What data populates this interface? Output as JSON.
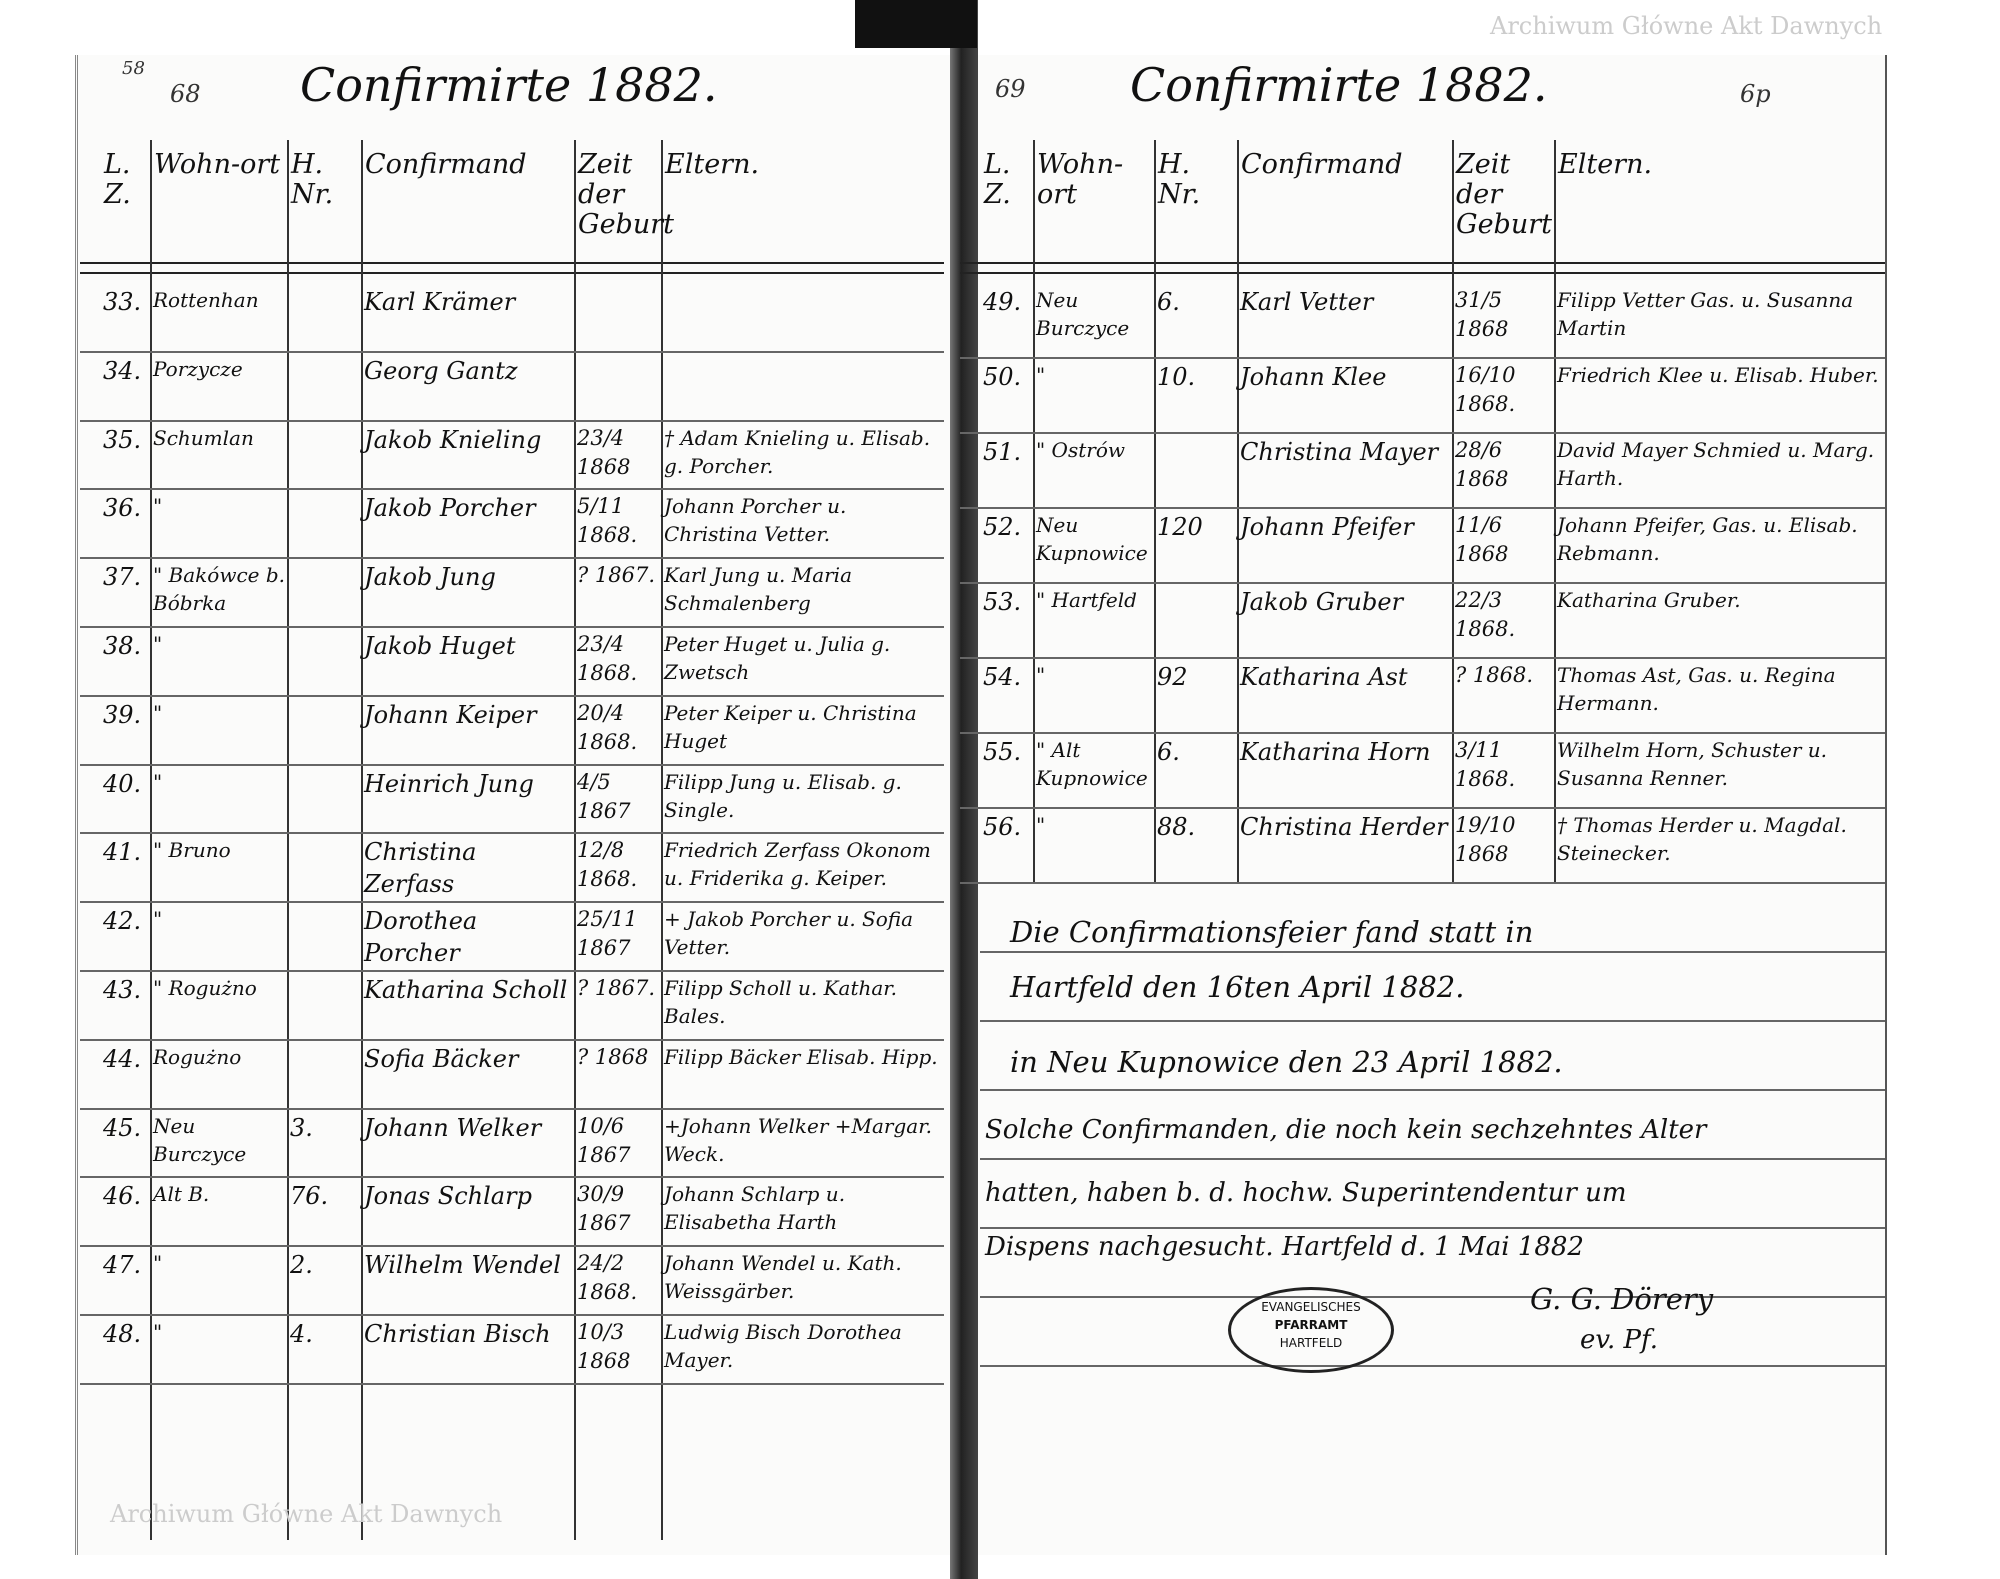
{
  "left_page": {
    "page_number": "68",
    "corner_mark": "58",
    "title": "Confirmirte 1882.",
    "headers": [
      "L. Z.",
      "Wohn-ort",
      "H. Nr.",
      "Confirmand",
      "Zeit der Geburt",
      "Eltern."
    ],
    "rows": [
      {
        "no": "33.",
        "place": "Rottenhan",
        "house": "",
        "name": "Karl Krämer",
        "birth": "",
        "parents": ""
      },
      {
        "no": "34.",
        "place": "Porzycze",
        "house": "",
        "name": "Georg Gantz",
        "birth": "",
        "parents": ""
      },
      {
        "no": "35.",
        "place": "Schumlan",
        "house": "",
        "name": "Jakob Knieling",
        "birth": "23/4 1868",
        "parents": "† Adam Knieling u. Elisab. g. Porcher."
      },
      {
        "no": "36.",
        "place": "\"",
        "house": "",
        "name": "Jakob Porcher",
        "birth": "5/11 1868.",
        "parents": "Johann Porcher u. Christina Vetter."
      },
      {
        "no": "37.",
        "place": "\" Bakówce b. Bóbrka",
        "house": "",
        "name": "Jakob Jung",
        "birth": "? 1867.",
        "parents": "Karl Jung u. Maria Schmalenberg"
      },
      {
        "no": "38.",
        "place": "\"",
        "house": "",
        "name": "Jakob Huget",
        "birth": "23/4 1868.",
        "parents": "Peter Huget u. Julia g. Zwetsch"
      },
      {
        "no": "39.",
        "place": "\"",
        "house": "",
        "name": "Johann Keiper",
        "birth": "20/4 1868.",
        "parents": "Peter Keiper u. Christina Huget"
      },
      {
        "no": "40.",
        "place": "\"",
        "house": "",
        "name": "Heinrich Jung",
        "birth": "4/5 1867",
        "parents": "Filipp Jung u. Elisab. g. Single."
      },
      {
        "no": "41.",
        "place": "\" Bruno",
        "house": "",
        "name": "Christina Zerfass",
        "birth": "12/8 1868.",
        "parents": "Friedrich Zerfass Okonom u. Friderika g. Keiper."
      },
      {
        "no": "42.",
        "place": "\"",
        "house": "",
        "name": "Dorothea Porcher",
        "birth": "25/11 1867",
        "parents": "+ Jakob Porcher u. Sofia Vetter."
      },
      {
        "no": "43.",
        "place": "\" Rogużno",
        "house": "",
        "name": "Katharina Scholl",
        "birth": "? 1867.",
        "parents": "Filipp Scholl u. Kathar. Bales."
      },
      {
        "no": "44.",
        "place": "Rogużno",
        "house": "",
        "name": "Sofia Bäcker",
        "birth": "? 1868",
        "parents": "Filipp Bäcker Elisab. Hipp."
      },
      {
        "no": "45.",
        "place": "Neu Burczyce",
        "house": "3.",
        "name": "Johann Welker",
        "birth": "10/6 1867",
        "parents": "+Johann Welker +Margar. Weck."
      },
      {
        "no": "46.",
        "place": "Alt B.",
        "house": "76.",
        "name": "Jonas Schlarp",
        "birth": "30/9 1867",
        "parents": "Johann Schlarp u. Elisabetha Harth"
      },
      {
        "no": "47.",
        "place": "\"",
        "house": "2.",
        "name": "Wilhelm Wendel",
        "birth": "24/2 1868.",
        "parents": "Johann Wendel u. Kath. Weissgärber."
      },
      {
        "no": "48.",
        "place": "\"",
        "house": "4.",
        "name": "Christian Bisch",
        "birth": "10/3 1868",
        "parents": "Ludwig Bisch Dorothea Mayer."
      }
    ]
  },
  "right_page": {
    "page_number": "69",
    "corner_mark": "6p",
    "title": "Confirmirte 1882.",
    "headers": [
      "L. Z.",
      "Wohn-ort",
      "H. Nr.",
      "Confirmand",
      "Zeit der Geburt",
      "Eltern."
    ],
    "rows": [
      {
        "no": "49.",
        "place": "Neu Burczyce",
        "house": "6.",
        "name": "Karl Vetter",
        "birth": "31/5 1868",
        "parents": "Filipp Vetter Gas. u. Susanna Martin"
      },
      {
        "no": "50.",
        "place": "\"",
        "house": "10.",
        "name": "Johann Klee",
        "birth": "16/10 1868.",
        "parents": "Friedrich Klee u. Elisab. Huber."
      },
      {
        "no": "51.",
        "place": "\" Ostrów",
        "house": "",
        "name": "Christina Mayer",
        "birth": "28/6 1868",
        "parents": "David Mayer Schmied u. Marg. Harth."
      },
      {
        "no": "52.",
        "place": "Neu Kupnowice",
        "house": "120",
        "name": "Johann Pfeifer",
        "birth": "11/6 1868",
        "parents": "Johann Pfeifer, Gas. u. Elisab. Rebmann."
      },
      {
        "no": "53.",
        "place": "\" Hartfeld",
        "house": "",
        "name": "Jakob Gruber",
        "birth": "22/3 1868.",
        "parents": "Katharina Gruber."
      },
      {
        "no": "54.",
        "place": "\"",
        "house": "92",
        "name": "Katharina Ast",
        "birth": "? 1868.",
        "parents": "Thomas Ast, Gas. u. Regina Hermann."
      },
      {
        "no": "55.",
        "place": "\" Alt Kupnowice",
        "house": "6.",
        "name": "Katharina Horn",
        "birth": "3/11 1868.",
        "parents": "Wilhelm Horn, Schuster u. Susanna Renner."
      },
      {
        "no": "56.",
        "place": "\"",
        "house": "88.",
        "name": "Christina Herder",
        "birth": "19/10 1868",
        "parents": "† Thomas Herder u. Magdal. Steinecker."
      }
    ],
    "notes": [
      "Die Confirmationsfeier fand statt in",
      "Hartfeld den 16ten April 1882.",
      "in Neu Kupnowice den 23 April 1882.",
      "Solche Confirmanden, die noch kein sechzehntes Alter",
      "hatten, haben b. d. hochw. Superintendentur um",
      "Dispens nachgesucht. Hartfeld d. 1 Mai 1882"
    ],
    "signature": "G. G. Dörery",
    "signature_title": "ev. Pf.",
    "stamp": [
      "EVANGELISCHES",
      "PFARRAMT",
      "HARTFELD"
    ]
  },
  "watermark": "Archiwum Główne Akt Dawnych"
}
